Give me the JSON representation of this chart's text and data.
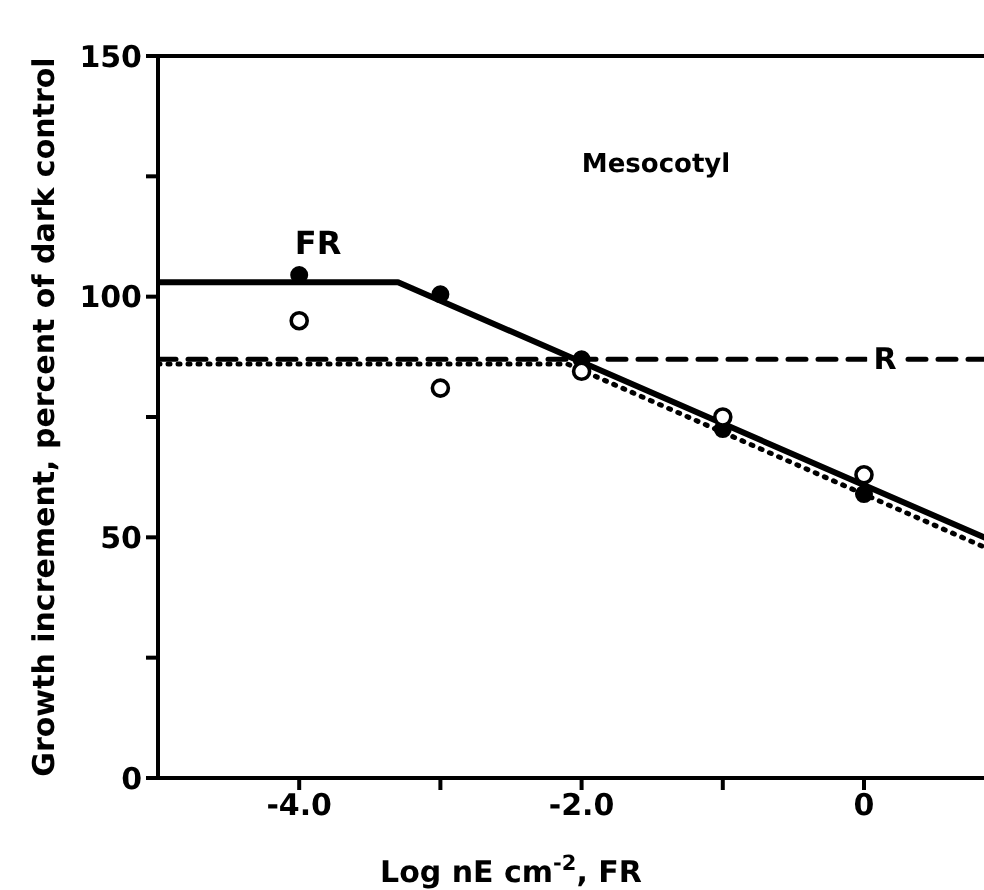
{
  "chart_data": {
    "type": "line",
    "xlabel": "Log nE cm$^{-2}$, FR",
    "ylabel": "Growth increment,  percent of dark control",
    "annotations": [
      "Mesocotyl"
    ],
    "xlim": [
      -5,
      0.85
    ],
    "xticks": [
      {
        "value": -4,
        "label": "-4.0"
      },
      {
        "value": -3,
        "label": null
      },
      {
        "value": -2,
        "label": "-2.0"
      },
      {
        "value": -1,
        "label": null
      },
      {
        "value": 0,
        "label": "0"
      }
    ],
    "ylim": [
      0,
      150
    ],
    "yticks": [
      0,
      {
        "value": 25,
        "label": null
      },
      50,
      {
        "value": 75,
        "label": null
      },
      100,
      {
        "value": 125,
        "label": null
      },
      150
    ],
    "series": [
      {
        "name": "FR",
        "color": "#000000",
        "line_style": "solid",
        "x": [
          -5,
          -3.3,
          0.85
        ],
        "values": [
          103,
          103,
          50
        ]
      },
      {
        "name": "R",
        "color": "#000000",
        "line_style": "dashed",
        "x": [
          -5,
          0.15,
          0.85
        ],
        "values": [
          87,
          87,
          87
        ]
      },
      {
        "color": "#000000",
        "line_style": "dotted",
        "x": [
          -5,
          -2.1,
          0.85
        ],
        "values": [
          86,
          86,
          48
        ]
      },
      {
        "type": "scatter",
        "color": "#000000",
        "marker": "circle",
        "x": [
          -4,
          -3,
          -2,
          -1,
          0
        ],
        "values": [
          104.5,
          100.5,
          87,
          72.5,
          59
        ]
      },
      {
        "type": "scatter",
        "color": "#000000",
        "marker": "circle_open",
        "x": [
          -4,
          -3,
          -2,
          -1,
          0
        ],
        "values": [
          95,
          81,
          84.5,
          75,
          63
        ]
      }
    ]
  }
}
